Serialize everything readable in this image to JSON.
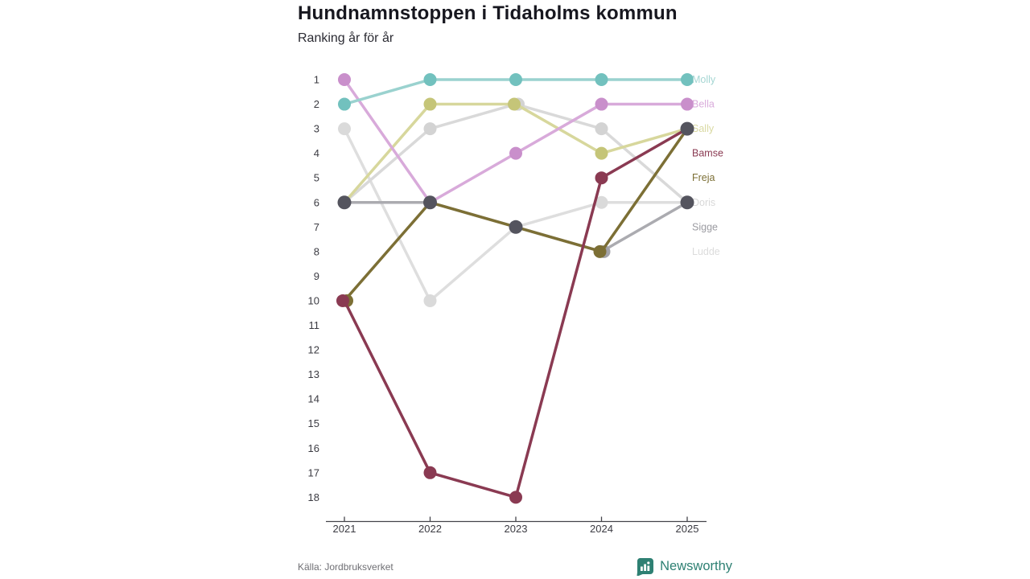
{
  "header": {
    "title": "Hundnamnstoppen i Tidaholms kommun",
    "subtitle": "Ranking år för år"
  },
  "chart_data": {
    "type": "line",
    "title": "Hundnamnstoppen i Tidaholms kommun",
    "subtitle": "Ranking år för år",
    "x": [
      2021,
      2022,
      2023,
      2024,
      2025
    ],
    "xlabel": "",
    "ylabel": "",
    "y_ticks": [
      1,
      2,
      3,
      4,
      5,
      6,
      7,
      8,
      9,
      10,
      11,
      12,
      13,
      14,
      15,
      16,
      17,
      18
    ],
    "y_inverted": true,
    "grid": false,
    "legend_position": "right-edge-labels",
    "series": [
      {
        "name": "Molly",
        "values": [
          2,
          1,
          1,
          1,
          1
        ],
        "label_rank": 1,
        "color": "#72c1be",
        "line_color": "#9ad2cf",
        "label_color": "#a5d6d3"
      },
      {
        "name": "Bella",
        "values": [
          1,
          6,
          4,
          2,
          2
        ],
        "label_rank": 2,
        "color": "#c98fcb",
        "line_color": "#d8aada",
        "label_color": "#d9abdb"
      },
      {
        "name": "Sally",
        "values": [
          6,
          2,
          2,
          4,
          3
        ],
        "label_rank": 3,
        "color": "#c5c578",
        "line_color": "#d7d79c",
        "label_color": "#d9d9a2"
      },
      {
        "name": "Bamse",
        "values": [
          10,
          17,
          18,
          5,
          3
        ],
        "label_rank": 4,
        "color": "#8a3a52",
        "line_color": "#8a3a52",
        "label_color": "#8a3a52"
      },
      {
        "name": "Freja",
        "values": [
          10,
          6,
          7,
          8,
          3
        ],
        "label_rank": 5,
        "color": "#7c6f35",
        "line_color": "#7c6f35",
        "label_color": "#7c6f35"
      },
      {
        "name": "Doris",
        "values": [
          6,
          3,
          2,
          3,
          6
        ],
        "label_rank": 6,
        "color": "#d3d3d3",
        "line_color": "#d9d9d9",
        "label_color": "#d8d8d8"
      },
      {
        "name": "Sigge",
        "values": [
          6,
          6,
          7,
          8,
          6
        ],
        "label_rank": 7,
        "color": "#a3a3a9",
        "line_color": "#ababb0",
        "label_color": "#9c9ca2"
      },
      {
        "name": "Ludde",
        "values": [
          3,
          10,
          7,
          6,
          6
        ],
        "label_rank": 8,
        "color": "#dadada",
        "line_color": "#dedede",
        "label_color": "#dcdcdc"
      }
    ],
    "tie_points": [
      {
        "year": 2021,
        "rank": 6
      },
      {
        "year": 2022,
        "rank": 6
      },
      {
        "year": 2023,
        "rank": 7
      },
      {
        "year": 2025,
        "rank": 3
      },
      {
        "year": 2025,
        "rank": 6
      }
    ],
    "tie_dot_color": "#54545e",
    "axis_color": "#44444a"
  },
  "footer": {
    "source": "Källa: Jordbruksverket",
    "brand": "Newsworthy",
    "brand_color": "#2e8073"
  }
}
